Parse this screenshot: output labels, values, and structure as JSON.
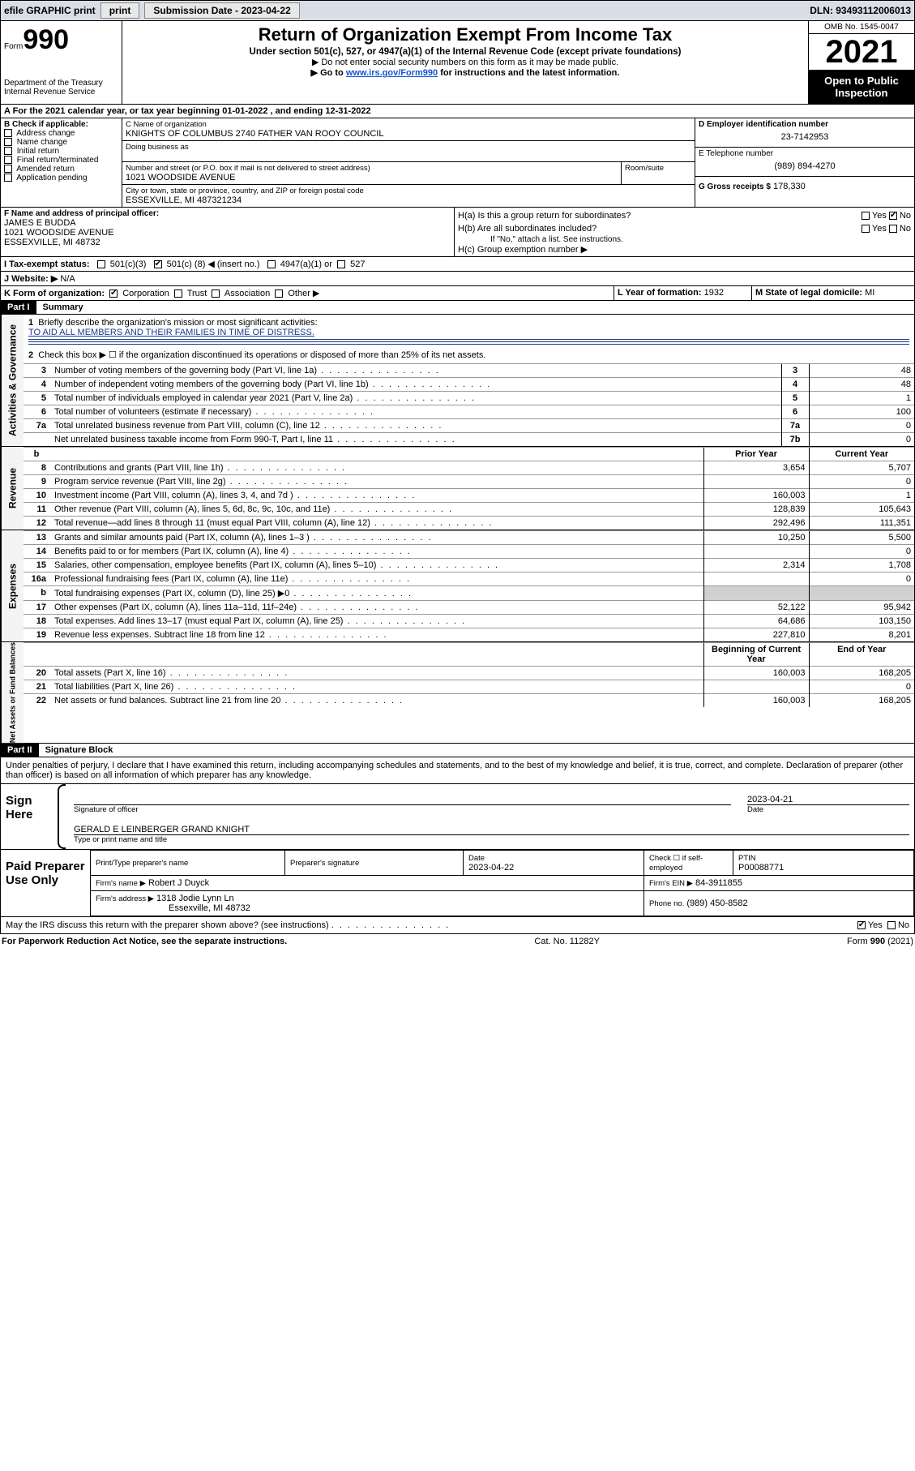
{
  "topbar": {
    "efile": "efile GRAPHIC print",
    "sub_label": "Submission Date - 2023-04-22",
    "dln": "DLN: 93493112006013"
  },
  "header": {
    "form_word": "Form",
    "form_no": "990",
    "title": "Return of Organization Exempt From Income Tax",
    "sub1": "Under section 501(c), 527, or 4947(a)(1) of the Internal Revenue Code (except private foundations)",
    "sub2": "▶ Do not enter social security numbers on this form as it may be made public.",
    "sub3_pre": "▶ Go to ",
    "sub3_link": "www.irs.gov/Form990",
    "sub3_post": " for instructions and the latest information.",
    "dept": "Department of the Treasury",
    "irs": "Internal Revenue Service",
    "omb": "OMB No. 1545-0047",
    "year": "2021",
    "inspection": "Open to Public Inspection"
  },
  "line_a": {
    "text_pre": "A For the 2021 calendar year, or tax year beginning ",
    "begin": "01-01-2022",
    "mid": " , and ending ",
    "end": "12-31-2022"
  },
  "section_b": {
    "heading": "B Check if applicable:",
    "items": [
      "Address change",
      "Name change",
      "Initial return",
      "Final return/terminated",
      "Amended return",
      "Application pending"
    ]
  },
  "section_c": {
    "name_lbl": "C Name of organization",
    "name": "KNIGHTS OF COLUMBUS 2740 FATHER VAN ROOY COUNCIL",
    "dba_lbl": "Doing business as",
    "addr_lbl": "Number and street (or P.O. box if mail is not delivered to street address)",
    "room_lbl": "Room/suite",
    "addr": "1021 WOODSIDE AVENUE",
    "city_lbl": "City or town, state or province, country, and ZIP or foreign postal code",
    "city": "ESSEXVILLE, MI  487321234"
  },
  "section_d": {
    "ein_lbl": "D Employer identification number",
    "ein": "23-7142953",
    "phone_lbl": "E Telephone number",
    "phone": "(989) 894-4270",
    "gross_lbl": "G Gross receipts $",
    "gross": "178,330"
  },
  "section_f": {
    "lbl": "F Name and address of principal officer:",
    "name": "JAMES E BUDDA",
    "addr1": "1021 WOODSIDE AVENUE",
    "addr2": "ESSEXVILLE, MI  48732"
  },
  "section_h": {
    "ha": "H(a)  Is this a group return for subordinates?",
    "hb": "H(b)  Are all subordinates included?",
    "hb_note": "If \"No,\" attach a list. See instructions.",
    "hc": "H(c)  Group exemption number ▶",
    "yes": "Yes",
    "no": "No"
  },
  "line_i": {
    "lbl": "I     Tax-exempt status:",
    "o1": "501(c)(3)",
    "o2_pre": "501(c) (",
    "o2_val": "8",
    "o2_post": ") ◀ (insert no.)",
    "o3": "4947(a)(1) or",
    "o4": "527"
  },
  "line_j": {
    "lbl": "J     Website: ▶",
    "val": "N/A"
  },
  "line_k": {
    "lbl": "K Form of organization:",
    "opts": [
      "Corporation",
      "Trust",
      "Association",
      "Other ▶"
    ],
    "l_lbl": "L Year of formation:",
    "l_val": "1932",
    "m_lbl": "M State of legal domicile:",
    "m_val": "MI"
  },
  "part1": {
    "hdr": "Part I",
    "title": "Summary",
    "q1": "Briefly describe the organization's mission or most significant activities:",
    "mission": "TO AID ALL MEMBERS AND THEIR FAMILIES IN TIME OF DISTRESS.",
    "q2": "Check this box ▶ ☐  if the organization discontinued its operations or disposed of more than 25% of its net assets.",
    "rows_top": [
      {
        "n": "3",
        "t": "Number of voting members of the governing body (Part VI, line 1a)",
        "k": "3",
        "v": "48"
      },
      {
        "n": "4",
        "t": "Number of independent voting members of the governing body (Part VI, line 1b)",
        "k": "4",
        "v": "48"
      },
      {
        "n": "5",
        "t": "Total number of individuals employed in calendar year 2021 (Part V, line 2a)",
        "k": "5",
        "v": "1"
      },
      {
        "n": "6",
        "t": "Total number of volunteers (estimate if necessary)",
        "k": "6",
        "v": "100"
      },
      {
        "n": "7a",
        "t": "Total unrelated business revenue from Part VIII, column (C), line 12",
        "k": "7a",
        "v": "0"
      },
      {
        "n": "",
        "t": "Net unrelated business taxable income from Form 990-T, Part I, line 11",
        "k": "7b",
        "v": "0"
      }
    ],
    "col_prior": "Prior Year",
    "col_current": "Current Year",
    "revenue": [
      {
        "n": "8",
        "t": "Contributions and grants (Part VIII, line 1h)",
        "p": "3,654",
        "c": "5,707"
      },
      {
        "n": "9",
        "t": "Program service revenue (Part VIII, line 2g)",
        "p": "",
        "c": "0"
      },
      {
        "n": "10",
        "t": "Investment income (Part VIII, column (A), lines 3, 4, and 7d )",
        "p": "160,003",
        "c": "1"
      },
      {
        "n": "11",
        "t": "Other revenue (Part VIII, column (A), lines 5, 6d, 8c, 9c, 10c, and 11e)",
        "p": "128,839",
        "c": "105,643"
      },
      {
        "n": "12",
        "t": "Total revenue—add lines 8 through 11 (must equal Part VIII, column (A), line 12)",
        "p": "292,496",
        "c": "111,351"
      }
    ],
    "expenses": [
      {
        "n": "13",
        "t": "Grants and similar amounts paid (Part IX, column (A), lines 1–3 )",
        "p": "10,250",
        "c": "5,500"
      },
      {
        "n": "14",
        "t": "Benefits paid to or for members (Part IX, column (A), line 4)",
        "p": "",
        "c": "0"
      },
      {
        "n": "15",
        "t": "Salaries, other compensation, employee benefits (Part IX, column (A), lines 5–10)",
        "p": "2,314",
        "c": "1,708"
      },
      {
        "n": "16a",
        "t": "Professional fundraising fees (Part IX, column (A), line 11e)",
        "p": "",
        "c": "0"
      },
      {
        "n": "b",
        "t": "Total fundraising expenses (Part IX, column (D), line 25) ▶0",
        "p": "SHADE",
        "c": "SHADE"
      },
      {
        "n": "17",
        "t": "Other expenses (Part IX, column (A), lines 11a–11d, 11f–24e)",
        "p": "52,122",
        "c": "95,942"
      },
      {
        "n": "18",
        "t": "Total expenses. Add lines 13–17 (must equal Part IX, column (A), line 25)",
        "p": "64,686",
        "c": "103,150"
      },
      {
        "n": "19",
        "t": "Revenue less expenses. Subtract line 18 from line 12",
        "p": "227,810",
        "c": "8,201"
      }
    ],
    "col_begin": "Beginning of Current Year",
    "col_end": "End of Year",
    "netassets": [
      {
        "n": "20",
        "t": "Total assets (Part X, line 16)",
        "p": "160,003",
        "c": "168,205"
      },
      {
        "n": "21",
        "t": "Total liabilities (Part X, line 26)",
        "p": "",
        "c": "0"
      },
      {
        "n": "22",
        "t": "Net assets or fund balances. Subtract line 21 from line 20",
        "p": "160,003",
        "c": "168,205"
      }
    ],
    "side_labels": {
      "gov": "Activities & Governance",
      "rev": "Revenue",
      "exp": "Expenses",
      "net": "Net Assets or Fund Balances"
    }
  },
  "part2": {
    "hdr": "Part II",
    "title": "Signature Block",
    "penalty": "Under penalties of perjury, I declare that I have examined this return, including accompanying schedules and statements, and to the best of my knowledge and belief, it is true, correct, and complete. Declaration of preparer (other than officer) is based on all information of which preparer has any knowledge.",
    "sign_here": "Sign Here",
    "sig_officer": "Signature of officer",
    "sig_date": "2023-04-21",
    "date_lbl": "Date",
    "officer": "GERALD E LEINBERGER  GRAND KNIGHT",
    "type_lbl": "Type or print name and title",
    "paid": "Paid Preparer Use Only",
    "prep_cols": [
      "Print/Type preparer's name",
      "Preparer's signature",
      "Date",
      "Check ☐ if self-employed",
      "PTIN"
    ],
    "prep_date": "2023-04-22",
    "ptin": "P00088771",
    "firm_name_lbl": "Firm's name   ▶",
    "firm_name": "Robert J Duyck",
    "firm_ein_lbl": "Firm's EIN ▶",
    "firm_ein": "84-3911855",
    "firm_addr_lbl": "Firm's address ▶",
    "firm_addr1": "1318 Jodie Lynn Ln",
    "firm_addr2": "Essexville, MI  48732",
    "firm_phone_lbl": "Phone no.",
    "firm_phone": "(989) 450-8582",
    "may_irs": "May the IRS discuss this return with the preparer shown above? (see instructions)"
  },
  "footer": {
    "left": "For Paperwork Reduction Act Notice, see the separate instructions.",
    "mid": "Cat. No. 11282Y",
    "right": "Form 990 (2021)"
  },
  "colors": {
    "topbar_bg": "#d8dde6",
    "link": "#1155cc",
    "mission": "#1a3a8a",
    "shade": "#d0d0d0"
  }
}
